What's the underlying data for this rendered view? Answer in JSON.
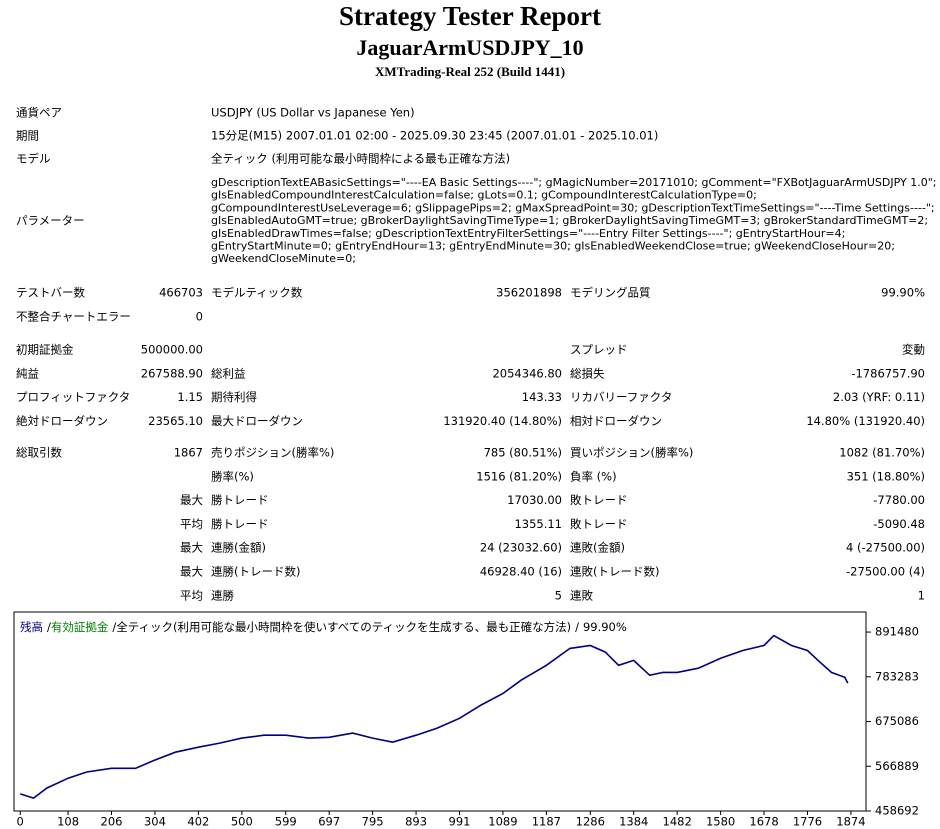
{
  "header": {
    "title": "Strategy Tester Report",
    "subtitle": "JaguarArmUSDJPY_10",
    "build": "XMTrading-Real 252 (Build 1441)"
  },
  "info": [
    {
      "label": "通貨ペア",
      "lines": [
        "USDJPY (US Dollar vs Japanese Yen)"
      ]
    },
    {
      "label": "期間",
      "lines": [
        "15分足(M15) 2007.01.01 02:00 - 2025.09.30 23:45 (2007.01.01 - 2025.10.01)"
      ]
    },
    {
      "label": "モデル",
      "lines": [
        "全ティック (利用可能な最小時間枠による最も正確な方法)"
      ]
    },
    {
      "label": "パラメーター",
      "lines": [
        "gDescriptionTextEABasicSettings=\"----EA Basic Settings----\"; gMagicNumber=20171010; gComment=\"FXBotJaguarArmUSDJPY 1.0\";",
        "gIsEnabledCompoundInterestCalculation=false; gLots=0.1; gCompoundInterestCalculationType=0;",
        "gCompoundInterestUseLeverage=6; gSlippagePips=2; gMaxSpreadPoint=30; gDescriptionTextTimeSettings=\"----Time Settings----\";",
        "gIsEnabledAutoGMT=true; gBrokerDaylightSavingTimeType=1; gBrokerDaylightSavingTimeGMT=3; gBrokerStandardTimeGMT=2;",
        "gIsEnabledDrawTimes=false; gDescriptionTextEntryFilterSettings=\"----Entry Filter Settings----\"; gEntryStartHour=4;",
        "gEntryStartMinute=0; gEntryEndHour=13; gEntryEndMinute=30; gIsEnabledWeekendClose=true; gWeekendCloseHour=20;",
        "gWeekendCloseMinute=0;"
      ]
    }
  ],
  "stats": [
    {
      "rows": [
        [
          "テストバー数",
          "466703",
          "モデルティック数",
          "356201898",
          "モデリング品質",
          "99.90%"
        ],
        [
          "不整合チャートエラー",
          "0",
          null,
          null,
          null,
          null
        ]
      ]
    },
    {
      "rows": [
        [
          "初期証拠金",
          "500000.00",
          null,
          null,
          "スプレッド",
          "変動"
        ],
        [
          "純益",
          "267588.90",
          "総利益",
          "2054346.80",
          "総損失",
          "-1786757.90"
        ],
        [
          "プロフィットファクタ",
          "1.15",
          "期待利得",
          "143.33",
          "リカバリーファクタ",
          "2.03 (YRF: 0.11)"
        ],
        [
          "絶対ドローダウン",
          "23565.10",
          "最大ドローダウン",
          "131920.40 (14.80%)",
          "相対ドローダウン",
          "14.80% (131920.40)"
        ]
      ]
    },
    {
      "rows": [
        [
          "総取引数",
          "1867",
          "売りポジション(勝率%)",
          "785 (80.51%)",
          "買いポジション(勝率%)",
          "1082 (81.70%)"
        ],
        [
          null,
          null,
          "勝率(%)",
          "1516 (81.20%)",
          "負率 (%)",
          "351 (18.80%)"
        ],
        [
          null,
          "最大",
          "勝トレード",
          "17030.00",
          "敗トレード",
          "-7780.00"
        ],
        [
          null,
          "平均",
          "勝トレード",
          "1355.11",
          "敗トレード",
          "-5090.48"
        ],
        [
          null,
          "最大",
          "連勝(金額)",
          "24 (23032.60)",
          "連敗(金額)",
          "4 (-27500.00)"
        ],
        [
          null,
          "最大",
          "連勝(トレード数)",
          "46928.40 (16)",
          "連敗(トレード数)",
          "-27500.00 (4)"
        ],
        [
          null,
          "平均",
          "連勝",
          "5",
          "連敗",
          "1"
        ]
      ]
    }
  ],
  "chart_data": {
    "type": "line",
    "caption": "全ティック(利用可能な最小時間枠を使いすべてのティックを生成する、最も正確な方法)",
    "quality": "99.90%",
    "separator": "/",
    "x": [
      0,
      30,
      60,
      108,
      150,
      206,
      260,
      304,
      350,
      402,
      450,
      500,
      550,
      599,
      650,
      697,
      750,
      795,
      840,
      893,
      940,
      991,
      1040,
      1089,
      1130,
      1187,
      1240,
      1286,
      1320,
      1350,
      1384,
      1420,
      1450,
      1482,
      1530,
      1580,
      1630,
      1678,
      1700,
      1740,
      1776,
      1800,
      1830,
      1860,
      1867
    ],
    "series": [
      {
        "name": "残高",
        "color": "#000080",
        "values": [
          500000,
          490000,
          514000,
          538000,
          553000,
          562000,
          562000,
          582000,
          601000,
          613000,
          623000,
          635000,
          642000,
          642000,
          635000,
          637000,
          647000,
          635000,
          625000,
          642000,
          659000,
          683000,
          715000,
          743000,
          775000,
          811000,
          852000,
          859000,
          843000,
          811000,
          823000,
          787000,
          794000,
          794000,
          804000,
          828000,
          847000,
          859000,
          883000,
          859000,
          847000,
          823000,
          794000,
          782000,
          768000
        ]
      },
      {
        "name": "有効証拠金",
        "color": "#008000"
      }
    ],
    "xlim": [
      -14,
      1908
    ],
    "ylim": [
      458692,
      940000
    ],
    "xticks": [
      0,
      108,
      206,
      304,
      402,
      500,
      599,
      697,
      795,
      893,
      991,
      1089,
      1187,
      1286,
      1384,
      1482,
      1580,
      1678,
      1776,
      1874
    ],
    "yticks": [
      458692,
      566889,
      675086,
      783283,
      891480
    ],
    "grid": false
  }
}
